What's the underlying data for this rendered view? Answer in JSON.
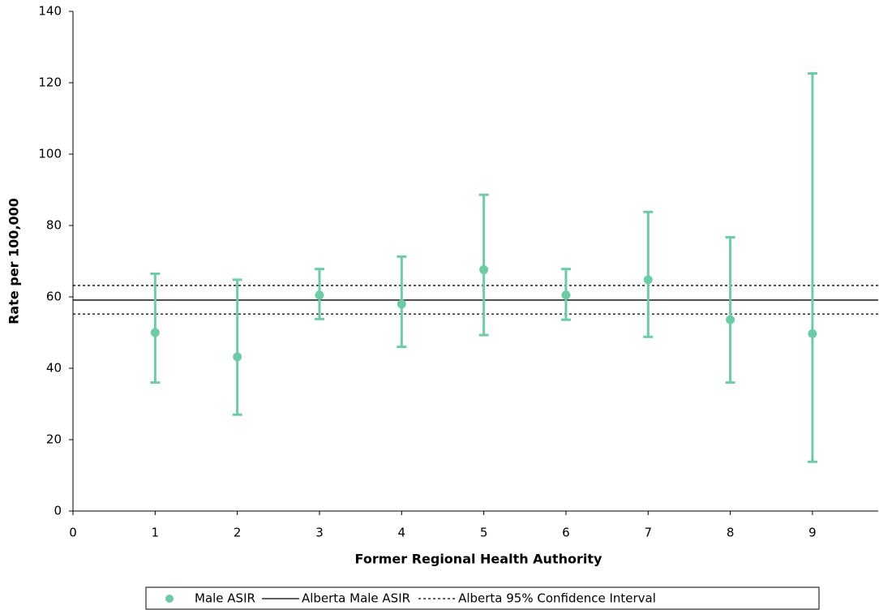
{
  "chart_data": {
    "type": "scatter",
    "x_label": "Former Regional Health Authority",
    "y_label": "Rate per 100,000",
    "x": [
      1,
      2,
      3,
      4,
      5,
      6,
      7,
      8,
      9
    ],
    "xlim": [
      0,
      9.8
    ],
    "xticks": [
      0,
      1,
      2,
      3,
      4,
      5,
      6,
      7,
      8,
      9
    ],
    "ylim": [
      0,
      140
    ],
    "yticks": [
      0,
      20,
      40,
      60,
      80,
      100,
      120,
      140
    ],
    "series": [
      {
        "name": "Male ASIR",
        "color": "#6dcba5",
        "values": [
          50,
          43.2,
          60.5,
          58,
          67.6,
          60.5,
          64.8,
          53.6,
          49.7
        ],
        "lower": [
          36,
          27,
          53.8,
          46,
          49.3,
          53.6,
          48.8,
          36,
          13.8
        ],
        "upper": [
          66.5,
          64.8,
          67.8,
          71.3,
          88.6,
          67.8,
          83.8,
          76.7,
          122.6
        ]
      }
    ],
    "reference_lines": [
      {
        "name": "Alberta Male ASIR",
        "value": 59.1,
        "color": "#000000",
        "style": "solid"
      },
      {
        "name": "Alberta 95% Confidence Interval",
        "lower": 55.2,
        "upper": 63.2,
        "color": "#000000",
        "style": "dotted"
      }
    ]
  }
}
